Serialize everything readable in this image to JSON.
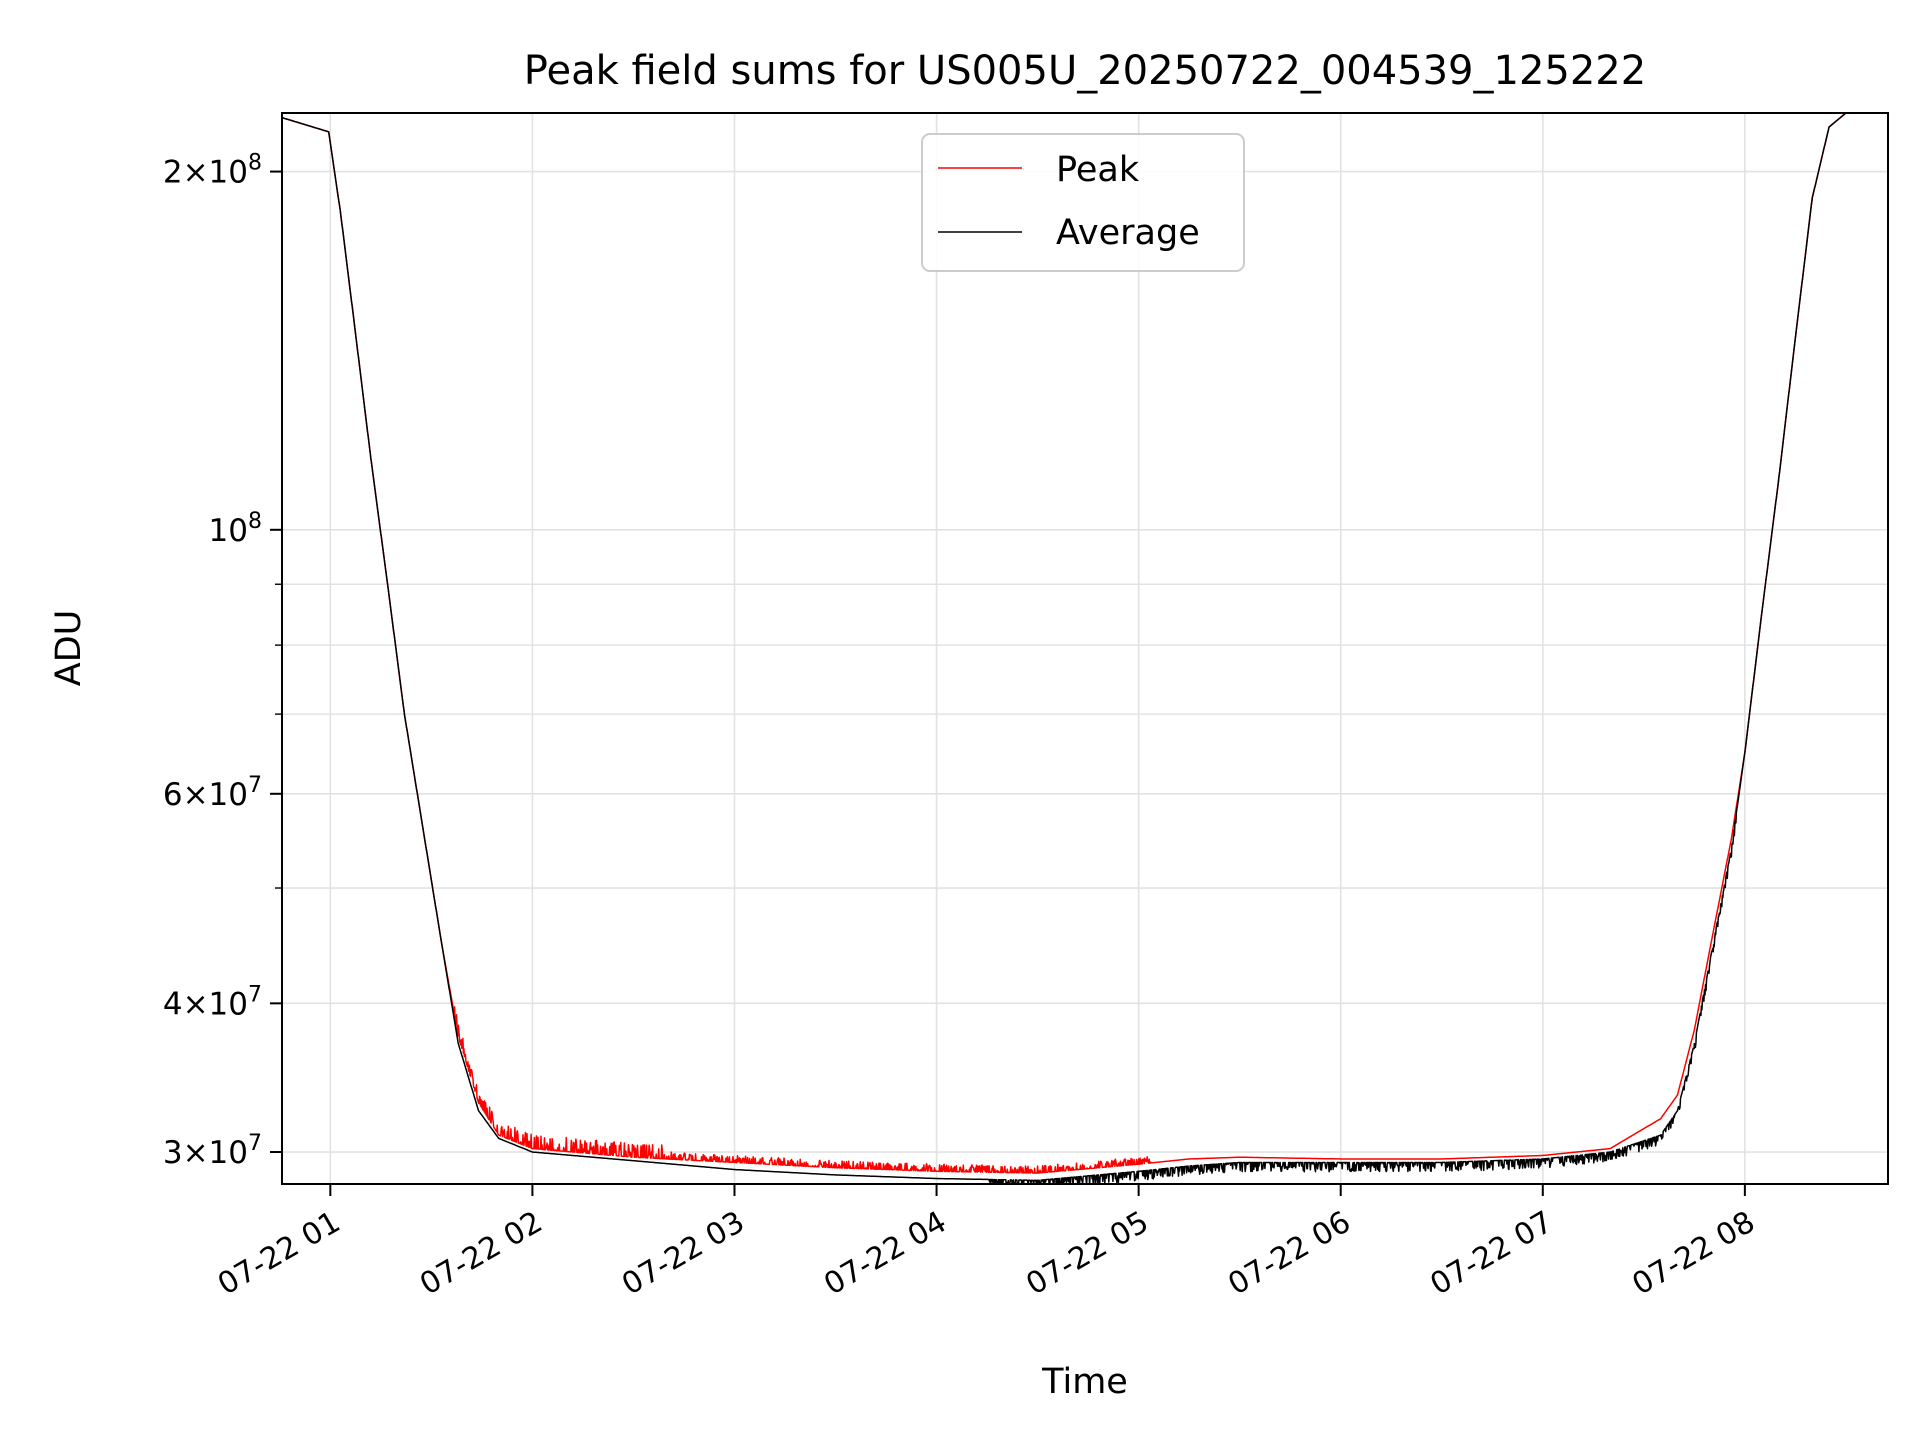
{
  "chart_data": {
    "type": "line",
    "title": "Peak field sums for US005U_20250722_004539_125222",
    "xlabel": "Time",
    "ylabel": "ADU",
    "yscale": "log",
    "x_range": [
      "2025-07-22 00:45:39",
      "2025-07-22 08:42:30"
    ],
    "ylim": [
      28200000,
      224000000
    ],
    "grid": true,
    "legend": {
      "position": "top-center",
      "entries": [
        "Peak",
        "Average"
      ]
    },
    "colors": {
      "Peak": "#ff0000",
      "Average": "#000000"
    },
    "x_ticks": [
      {
        "t": "2025-07-22 01:00",
        "label": "07-22 01"
      },
      {
        "t": "2025-07-22 02:00",
        "label": "07-22 02"
      },
      {
        "t": "2025-07-22 03:00",
        "label": "07-22 03"
      },
      {
        "t": "2025-07-22 04:00",
        "label": "07-22 04"
      },
      {
        "t": "2025-07-22 05:00",
        "label": "07-22 05"
      },
      {
        "t": "2025-07-22 06:00",
        "label": "07-22 06"
      },
      {
        "t": "2025-07-22 07:00",
        "label": "07-22 07"
      },
      {
        "t": "2025-07-22 08:00",
        "label": "07-22 08"
      }
    ],
    "y_major_ticks": [
      {
        "value": 30000000,
        "mantissa": "3",
        "exp": "7"
      },
      {
        "value": 40000000,
        "mantissa": "4",
        "exp": "7"
      },
      {
        "value": 60000000,
        "mantissa": "6",
        "exp": "7"
      },
      {
        "value": 100000000,
        "mantissa": "",
        "exp": "8"
      },
      {
        "value": 200000000,
        "mantissa": "2",
        "exp": "8"
      }
    ],
    "y_minor_gridlines": [
      50000000,
      70000000,
      80000000,
      90000000
    ],
    "series": [
      {
        "name": "Peak",
        "noise": "upward spikes",
        "points": [
          [
            "00:45:39",
            222000000
          ],
          [
            "00:59:30",
            216000000
          ],
          [
            "01:03:00",
            185000000
          ],
          [
            "01:07:00",
            150000000
          ],
          [
            "01:12:00",
            115000000
          ],
          [
            "01:17:00",
            90000000
          ],
          [
            "01:22:00",
            70000000
          ],
          [
            "01:28:00",
            55000000
          ],
          [
            "01:33:00",
            45000000
          ],
          [
            "01:38:00",
            37500000
          ],
          [
            "01:44:00",
            33000000
          ],
          [
            "01:50:00",
            31000000
          ],
          [
            "02:00:00",
            30200000
          ],
          [
            "02:30:00",
            29700000
          ],
          [
            "03:00:00",
            29400000
          ],
          [
            "03:30:00",
            29100000
          ],
          [
            "04:00:00",
            28900000
          ],
          [
            "04:30:00",
            28800000
          ],
          [
            "05:00:00",
            29300000
          ],
          [
            "05:15:00",
            29600000
          ],
          [
            "05:30:00",
            29700000
          ],
          [
            "06:00:00",
            29600000
          ],
          [
            "06:30:00",
            29600000
          ],
          [
            "07:00:00",
            29800000
          ],
          [
            "07:20:00",
            30200000
          ],
          [
            "07:35:00",
            32000000
          ],
          [
            "07:40:00",
            33500000
          ],
          [
            "07:45:00",
            38000000
          ],
          [
            "07:50:00",
            45000000
          ],
          [
            "07:56:00",
            55000000
          ],
          [
            "08:00:00",
            65000000
          ],
          [
            "08:05:00",
            85000000
          ],
          [
            "08:10:00",
            110000000
          ],
          [
            "08:15:00",
            145000000
          ],
          [
            "08:20:00",
            190000000
          ],
          [
            "08:25:00",
            218000000
          ],
          [
            "08:30:00",
            224000000
          ],
          [
            "08:42:30",
            224000000
          ]
        ]
      },
      {
        "name": "Average",
        "noise": "downward dips",
        "points": [
          [
            "00:45:39",
            222000000
          ],
          [
            "00:59:30",
            216000000
          ],
          [
            "01:03:00",
            185000000
          ],
          [
            "01:07:00",
            150000000
          ],
          [
            "01:12:00",
            115000000
          ],
          [
            "01:17:00",
            90000000
          ],
          [
            "01:22:00",
            70000000
          ],
          [
            "01:28:00",
            55000000
          ],
          [
            "01:33:00",
            45000000
          ],
          [
            "01:38:00",
            37000000
          ],
          [
            "01:44:00",
            32500000
          ],
          [
            "01:50:00",
            30800000
          ],
          [
            "02:00:00",
            30000000
          ],
          [
            "02:30:00",
            29500000
          ],
          [
            "03:00:00",
            29000000
          ],
          [
            "03:30:00",
            28700000
          ],
          [
            "04:00:00",
            28500000
          ],
          [
            "04:30:00",
            28400000
          ],
          [
            "05:00:00",
            28900000
          ],
          [
            "05:15:00",
            29200000
          ],
          [
            "05:30:00",
            29400000
          ],
          [
            "06:00:00",
            29400000
          ],
          [
            "06:30:00",
            29400000
          ],
          [
            "07:00:00",
            29600000
          ],
          [
            "07:20:00",
            30000000
          ],
          [
            "07:35:00",
            31000000
          ],
          [
            "07:40:00",
            32500000
          ],
          [
            "07:45:00",
            37000000
          ],
          [
            "07:50:00",
            44000000
          ],
          [
            "07:56:00",
            54000000
          ],
          [
            "08:00:00",
            65000000
          ],
          [
            "08:05:00",
            85000000
          ],
          [
            "08:10:00",
            110000000
          ],
          [
            "08:15:00",
            145000000
          ],
          [
            "08:20:00",
            190000000
          ],
          [
            "08:25:00",
            218000000
          ],
          [
            "08:30:00",
            224000000
          ],
          [
            "08:42:30",
            224000000
          ]
        ]
      }
    ]
  }
}
